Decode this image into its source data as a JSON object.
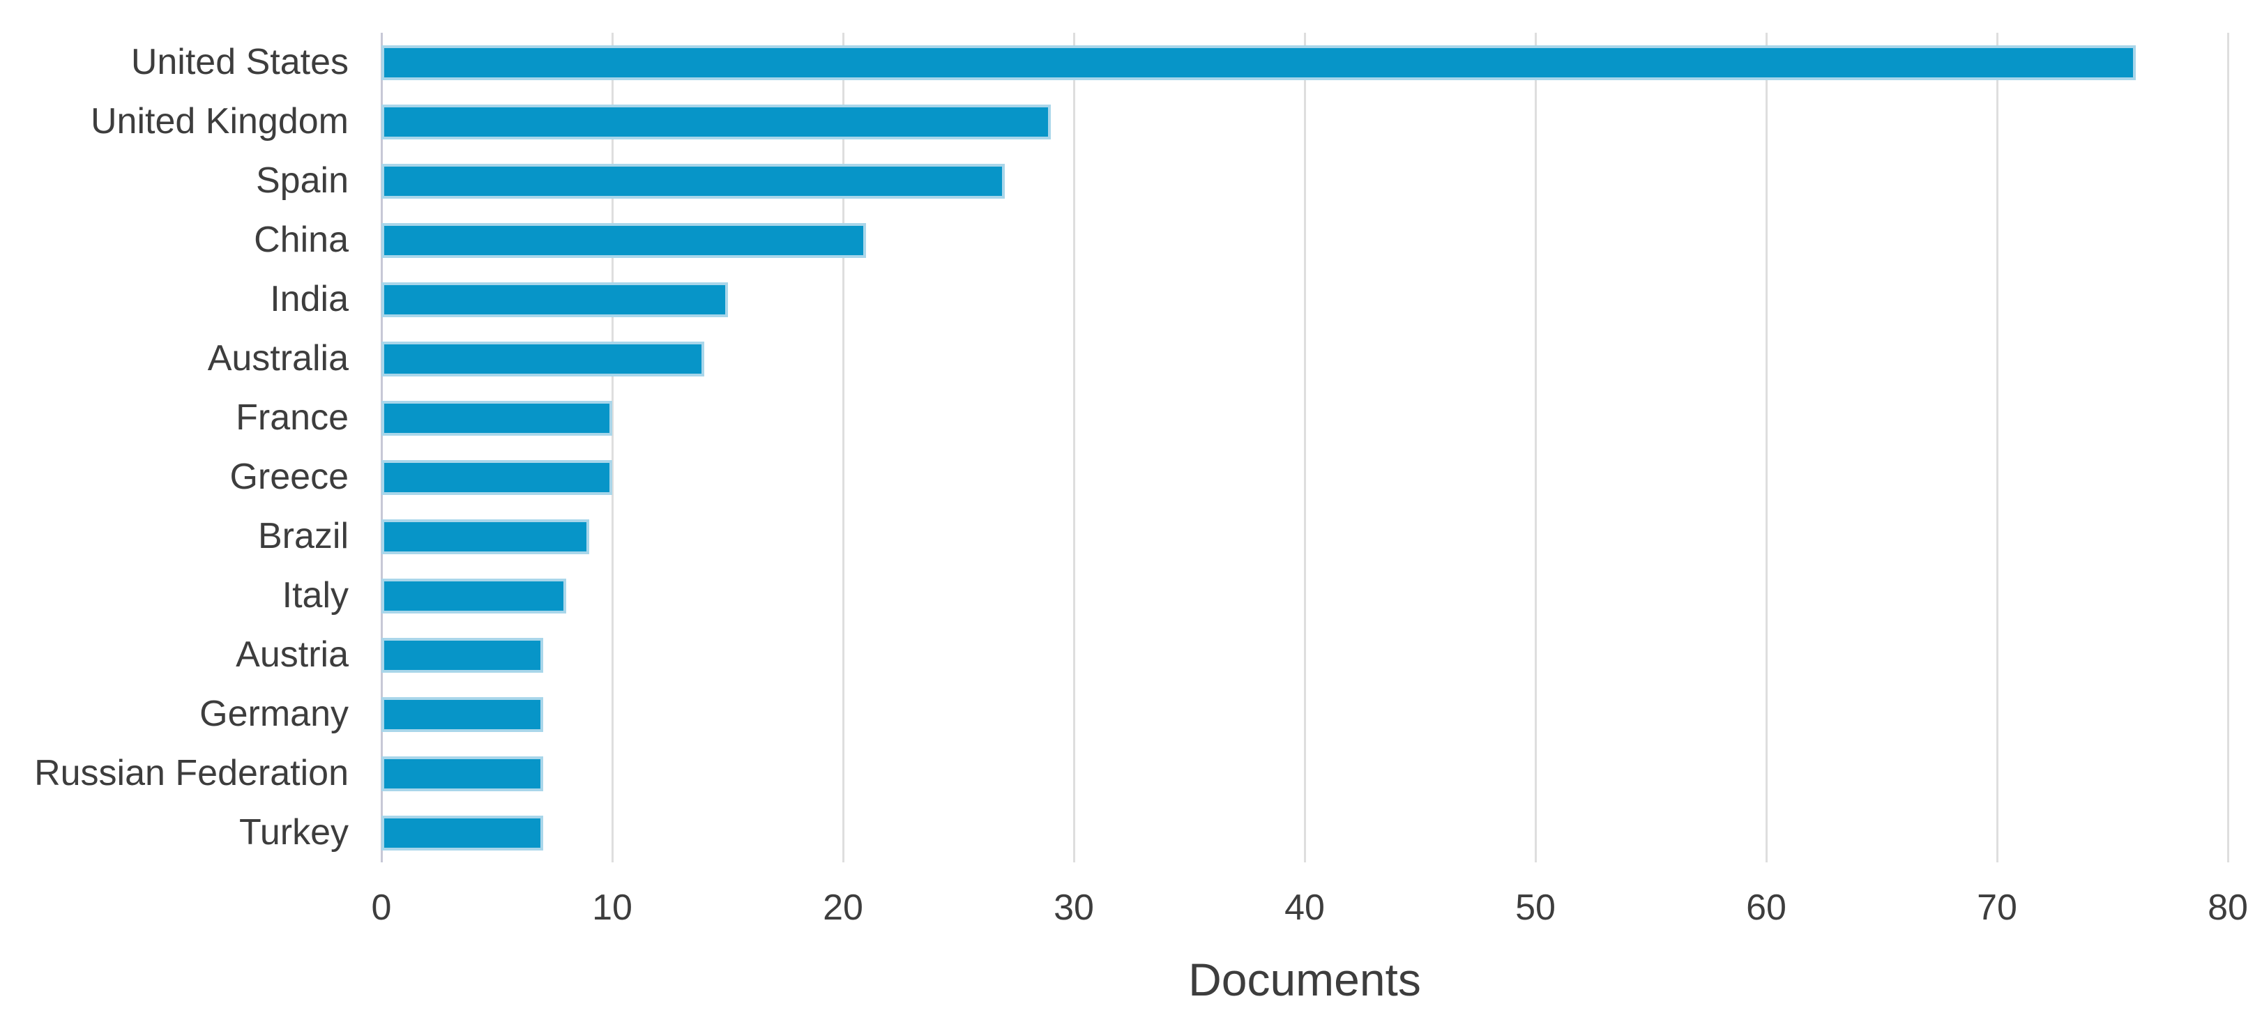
{
  "chart_data": {
    "type": "bar",
    "orientation": "horizontal",
    "title": "",
    "xlabel": "Documents",
    "ylabel": "",
    "categories": [
      "United States",
      "United Kingdom",
      "Spain",
      "China",
      "India",
      "Australia",
      "France",
      "Greece",
      "Brazil",
      "Italy",
      "Austria",
      "Germany",
      "Russian Federation",
      "Turkey"
    ],
    "values": [
      76,
      29,
      27,
      21,
      15,
      14,
      10,
      10,
      9,
      8,
      7,
      7,
      7,
      7
    ],
    "xlim": [
      0,
      80
    ],
    "xticks": [
      0,
      10,
      20,
      30,
      40,
      50,
      60,
      70,
      80
    ],
    "grid": "vertical-gridlines-on",
    "legend": "none",
    "colors": {
      "bar_fill": "#0795c8",
      "bar_border": "#a9d6ea",
      "gridline": "#dedede",
      "axis_line": "#c7c8d6",
      "text": "#3d3d3d",
      "background": "#ffffff"
    }
  }
}
